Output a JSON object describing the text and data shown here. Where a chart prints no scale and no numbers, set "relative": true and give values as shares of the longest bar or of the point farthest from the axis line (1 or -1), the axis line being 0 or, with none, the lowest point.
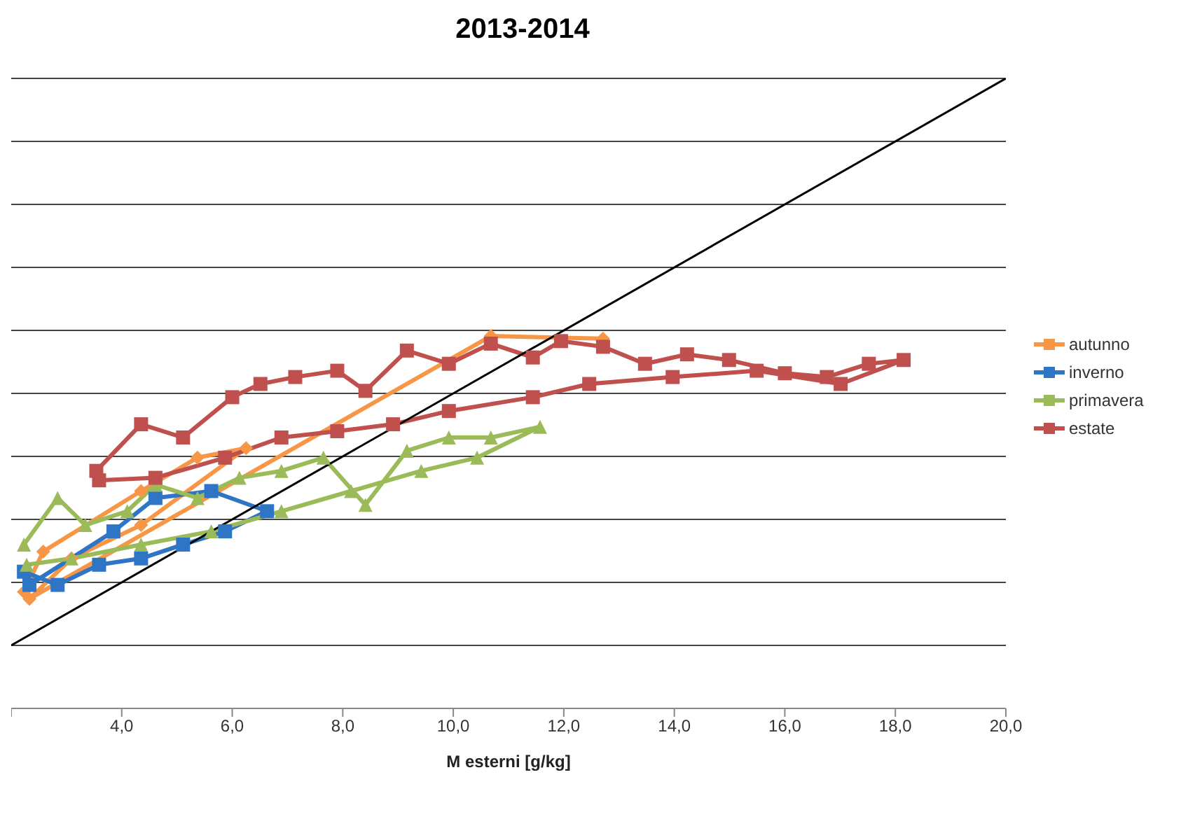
{
  "chart_data": {
    "type": "line",
    "title": "2013-2014",
    "xlabel": "M esterni [g/kg]",
    "relative": true,
    "grid": "y",
    "legend": "right",
    "tick_labels": "x",
    "xlim": [
      2,
      20
    ],
    "xticks": [
      {
        "value": 2,
        "label": null
      },
      {
        "value": 4,
        "label": "4,0"
      },
      {
        "value": 6,
        "label": "6,0"
      },
      {
        "value": 8,
        "label": "8,0"
      },
      {
        "value": 10,
        "label": "10,0"
      },
      {
        "value": 12,
        "label": "12,0"
      },
      {
        "value": 14,
        "label": "14,0"
      },
      {
        "value": 16,
        "label": "16,0"
      },
      {
        "value": 18,
        "label": "18,0"
      },
      {
        "value": 20,
        "label": "20,0"
      }
    ],
    "series": [
      {
        "name": "autunno",
        "color": "#f79646",
        "marker": "diamond",
        "x": [
          2.23,
          2.58,
          4.35,
          5.37,
          6.25,
          4.35,
          3.09,
          2.33,
          10.68,
          12.71
        ],
        "values": [
          0.185,
          0.249,
          0.345,
          0.398,
          0.413,
          0.291,
          0.238,
          0.174,
          0.591,
          0.587
        ]
      },
      {
        "name": "inverno",
        "color": "#2e75c6",
        "marker": "square",
        "x": [
          2.23,
          2.84,
          3.59,
          4.35,
          5.11,
          5.87,
          6.63,
          5.62,
          4.61,
          3.85,
          2.33
        ],
        "values": [
          0.217,
          0.196,
          0.228,
          0.238,
          0.26,
          0.281,
          0.313,
          0.345,
          0.334,
          0.281,
          0.196
        ]
      },
      {
        "name": "primavera",
        "color": "#9bbb59",
        "marker": "triangle",
        "x": [
          2.23,
          2.84,
          3.34,
          4.1,
          4.61,
          5.37,
          6.13,
          6.89,
          7.65,
          8.41,
          9.16,
          9.92,
          10.68,
          11.57,
          10.43,
          9.42,
          8.15,
          6.89,
          5.62,
          4.35,
          3.09,
          2.28
        ],
        "values": [
          0.26,
          0.334,
          0.291,
          0.313,
          0.355,
          0.334,
          0.366,
          0.377,
          0.398,
          0.323,
          0.409,
          0.43,
          0.43,
          0.447,
          0.398,
          0.377,
          0.345,
          0.313,
          0.281,
          0.26,
          0.238,
          0.228
        ]
      },
      {
        "name": "estate",
        "color": "#c0504d",
        "marker": "square",
        "x": [
          3.54,
          4.35,
          5.11,
          6.0,
          6.51,
          7.14,
          7.9,
          8.41,
          9.16,
          9.92,
          10.68,
          11.44,
          11.95,
          12.71,
          13.47,
          14.23,
          14.99,
          16.0,
          16.76,
          17.52,
          18.15,
          17.01,
          15.49,
          13.97,
          12.46,
          11.44,
          9.92,
          8.91,
          7.9,
          6.89,
          5.87,
          4.61,
          3.59
        ],
        "values": [
          0.377,
          0.451,
          0.43,
          0.494,
          0.515,
          0.526,
          0.536,
          0.504,
          0.568,
          0.547,
          0.579,
          0.557,
          0.583,
          0.574,
          0.547,
          0.562,
          0.553,
          0.532,
          0.526,
          0.547,
          0.553,
          0.515,
          0.536,
          0.526,
          0.515,
          0.494,
          0.472,
          0.451,
          0.44,
          0.43,
          0.398,
          0.366,
          0.362
        ]
      },
      {
        "color": "#000000",
        "marker": "none",
        "x": [
          2,
          20
        ],
        "values": [
          0.1,
          1
        ]
      }
    ]
  }
}
